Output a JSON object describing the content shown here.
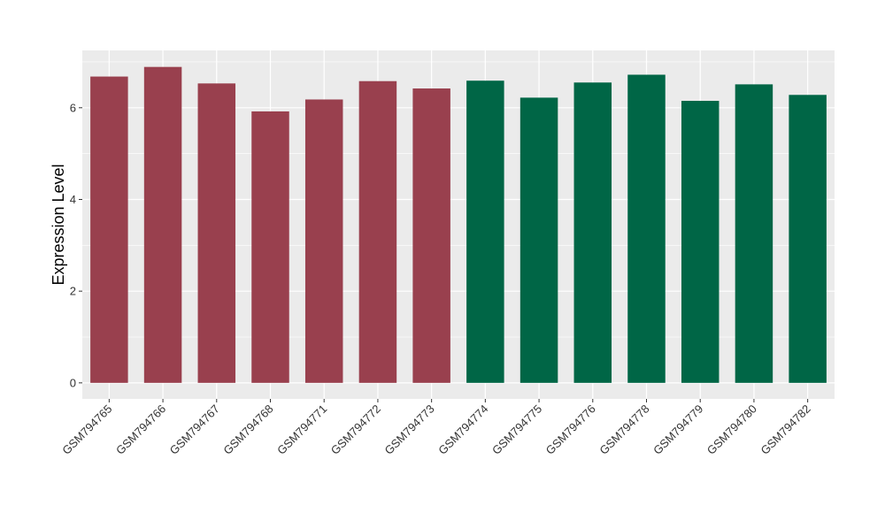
{
  "chart_data": {
    "type": "bar",
    "title": "",
    "xlabel": "",
    "ylabel": "Expression Level",
    "ylim": [
      -0.35,
      7.25
    ],
    "yticks": [
      0,
      2,
      4,
      6
    ],
    "grid": true,
    "legend": "none",
    "categories": [
      "GSM794765",
      "GSM794766",
      "GSM794767",
      "GSM794768",
      "GSM794771",
      "GSM794772",
      "GSM794773",
      "GSM794774",
      "GSM794775",
      "GSM794776",
      "GSM794778",
      "GSM794779",
      "GSM794780",
      "GSM794782"
    ],
    "values": [
      6.68,
      6.89,
      6.53,
      5.92,
      6.18,
      6.58,
      6.42,
      6.59,
      6.22,
      6.55,
      6.72,
      6.15,
      6.51,
      6.28
    ],
    "bar_colors": [
      "#99404e",
      "#99404e",
      "#99404e",
      "#99404e",
      "#99404e",
      "#99404e",
      "#99404e",
      "#006646",
      "#006646",
      "#006646",
      "#006646",
      "#006646",
      "#006646",
      "#006646"
    ],
    "panel_background": "#ebebeb",
    "grid_color": "#ffffff"
  }
}
